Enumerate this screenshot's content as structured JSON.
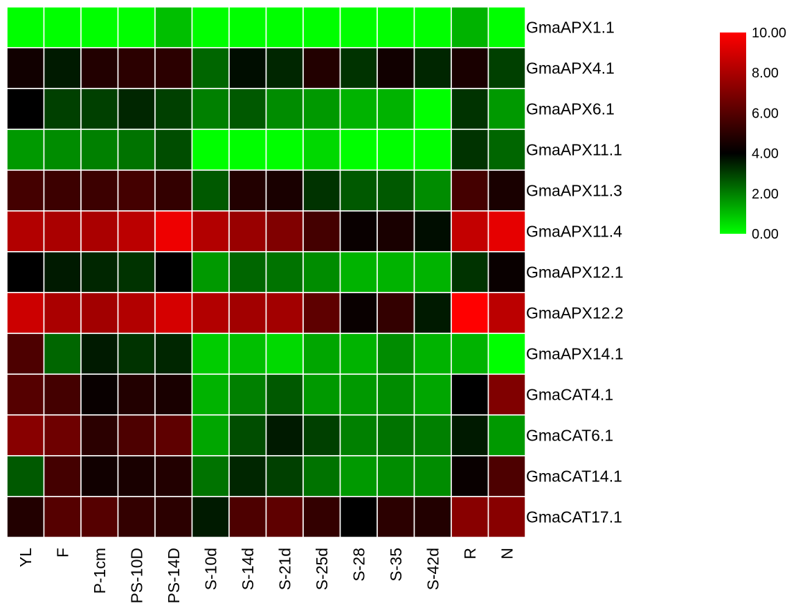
{
  "chart_data": {
    "type": "heatmap",
    "title": "",
    "xlabel": "",
    "ylabel": "",
    "columns": [
      "YL",
      "F",
      "P-1cm",
      "PS-10D",
      "PS-14D",
      "S-10d",
      "S-14d",
      "S-21d",
      "S-25d",
      "S-28",
      "S-35",
      "S-42d",
      "R",
      "N"
    ],
    "rows": [
      "GmaAPX1.1",
      "GmaAPX4.1",
      "GmaAPX6.1",
      "GmaAPX11.1",
      "GmaAPX11.3",
      "GmaAPX11.4",
      "GmaAPX12.1",
      "GmaAPX12.2",
      "GmaAPX14.1",
      "GmaCAT4.1",
      "GmaCAT6.1",
      "GmaCAT14.1",
      "GmaCAT17.1"
    ],
    "values": [
      [
        0.0,
        0.0,
        0.0,
        0.0,
        1.0,
        0.0,
        0.0,
        0.0,
        0.0,
        0.0,
        0.0,
        0.0,
        1.2,
        0.0
      ],
      [
        4.4,
        3.6,
        4.8,
        5.0,
        5.0,
        2.4,
        3.8,
        3.4,
        4.8,
        3.2,
        4.4,
        3.4,
        4.6,
        3.0
      ],
      [
        4.0,
        3.0,
        3.0,
        3.4,
        3.0,
        2.0,
        2.6,
        1.8,
        1.6,
        1.2,
        1.2,
        0.0,
        3.2,
        1.6
      ],
      [
        1.6,
        1.8,
        2.0,
        2.2,
        2.8,
        0.0,
        0.0,
        0.0,
        0.6,
        0.0,
        0.0,
        0.0,
        3.2,
        2.4
      ],
      [
        5.6,
        5.4,
        5.4,
        5.6,
        5.2,
        2.6,
        4.8,
        4.6,
        3.2,
        2.6,
        2.6,
        1.8,
        5.6,
        4.6
      ],
      [
        8.2,
        8.0,
        8.0,
        8.4,
        9.6,
        8.2,
        7.6,
        7.0,
        5.6,
        4.2,
        4.6,
        3.8,
        8.6,
        9.4
      ],
      [
        4.0,
        3.6,
        3.4,
        3.2,
        4.0,
        1.6,
        2.4,
        2.2,
        1.8,
        1.2,
        1.2,
        1.2,
        3.2,
        4.2
      ],
      [
        8.8,
        8.0,
        7.8,
        8.2,
        9.0,
        8.2,
        7.8,
        7.8,
        6.2,
        4.2,
        5.2,
        3.6,
        10.0,
        8.4
      ],
      [
        5.8,
        2.4,
        3.6,
        3.2,
        3.4,
        0.8,
        1.0,
        0.6,
        1.4,
        1.2,
        1.8,
        1.2,
        1.2,
        0.0
      ],
      [
        6.0,
        5.6,
        4.2,
        4.8,
        4.6,
        1.2,
        2.0,
        2.6,
        1.6,
        1.6,
        1.8,
        1.4,
        4.0,
        7.0
      ],
      [
        7.2,
        6.6,
        5.0,
        5.8,
        6.2,
        1.4,
        2.8,
        3.6,
        3.0,
        2.0,
        2.2,
        2.0,
        3.6,
        1.6
      ],
      [
        2.6,
        5.6,
        4.4,
        4.6,
        4.8,
        2.2,
        3.4,
        3.0,
        2.2,
        1.6,
        1.8,
        1.8,
        4.2,
        5.8
      ],
      [
        4.8,
        6.0,
        6.0,
        5.2,
        5.0,
        3.6,
        5.8,
        6.2,
        5.2,
        4.0,
        5.0,
        4.8,
        7.2,
        7.2
      ]
    ],
    "color_scale": {
      "min": 0.0,
      "mid": 4.0,
      "max": 10.0,
      "min_color": "#00ff00",
      "mid_color": "#000000",
      "max_color": "#ff0000",
      "tick_labels": [
        "10.00",
        "8.00",
        "6.00",
        "4.00",
        "2.00",
        "0.00"
      ]
    },
    "legend_position": "top-right",
    "grid": true,
    "gridline_color": "#ffffff"
  }
}
